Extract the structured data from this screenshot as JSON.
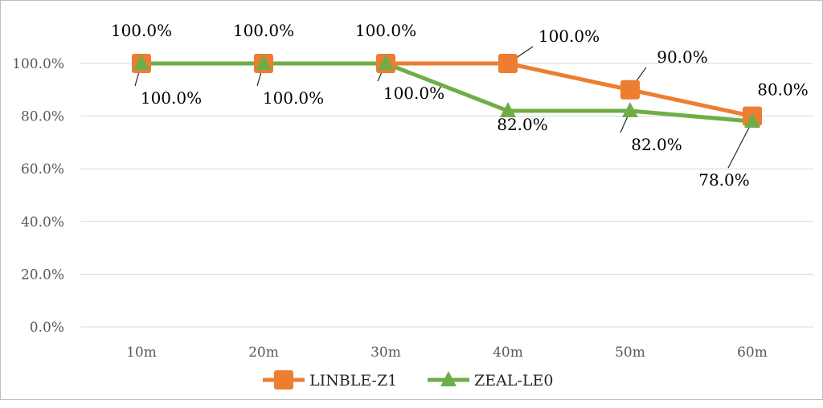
{
  "chart_data": {
    "type": "line",
    "title": "",
    "xlabel": "",
    "ylabel": "",
    "categories": [
      "10m",
      "20m",
      "30m",
      "40m",
      "50m",
      "60m"
    ],
    "ylim": [
      0,
      100
    ],
    "y_ticks": [
      0,
      20,
      40,
      60,
      80,
      100
    ],
    "y_tick_labels": [
      "0.0%",
      "20.0%",
      "40.0%",
      "60.0%",
      "80.0%",
      "100.0%"
    ],
    "grid": true,
    "legend_position": "bottom",
    "series": [
      {
        "name": "LINBLE-Z1",
        "color": "#ED7D31",
        "marker": "square",
        "values": [
          100,
          100,
          100,
          100,
          90,
          80
        ],
        "labels": [
          "100.0%",
          "100.0%",
          "100.0%",
          "100.0%",
          "90.0%",
          "80.0%"
        ]
      },
      {
        "name": "ZEAL-LE0",
        "color": "#70AD47",
        "marker": "triangle",
        "values": [
          100,
          100,
          100,
          82,
          82,
          78
        ],
        "labels": [
          "100.0%",
          "100.0%",
          "100.0%",
          "82.0%",
          "82.0%",
          "78.0%"
        ]
      }
    ]
  }
}
